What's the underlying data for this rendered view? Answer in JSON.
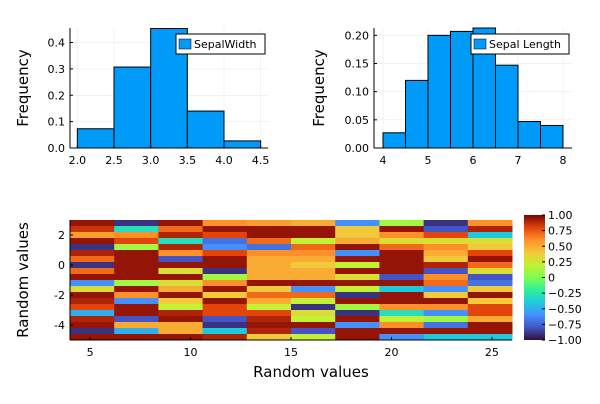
{
  "chart_data": [
    {
      "type": "bar",
      "subtype": "histogram",
      "bin_edges": [
        2.0,
        2.5,
        3.0,
        3.5,
        4.0,
        4.5
      ],
      "values": [
        0.073,
        0.307,
        0.453,
        0.14,
        0.027
      ],
      "series": [
        {
          "name": "SepalWidth",
          "values": [
            0.073,
            0.307,
            0.453,
            0.14,
            0.027
          ]
        }
      ],
      "title": "",
      "xlabel": "",
      "ylabel": "Frequency",
      "xlim": [
        1.9,
        4.6
      ],
      "ylim": [
        0,
        0.455
      ],
      "xticks": [
        2.0,
        2.5,
        3.0,
        3.5,
        4.0,
        4.5
      ],
      "xtick_labels": [
        "2.0",
        "2.5",
        "3.0",
        "3.5",
        "4.0",
        "4.5"
      ],
      "yticks": [
        0,
        0.1,
        0.2,
        0.3,
        0.4
      ],
      "ytick_labels": [
        "0.0",
        "0.1",
        "0.2",
        "0.3",
        "0.4"
      ],
      "legend": "top-right",
      "grid": true,
      "bar_color": "#009af9"
    },
    {
      "type": "bar",
      "subtype": "histogram",
      "bin_edges": [
        4.0,
        4.5,
        5.0,
        5.5,
        6.0,
        6.5,
        7.0,
        7.5,
        8.0
      ],
      "values": [
        0.027,
        0.12,
        0.2,
        0.207,
        0.213,
        0.147,
        0.047,
        0.04
      ],
      "series": [
        {
          "name": "Sepal Length",
          "values": [
            0.027,
            0.12,
            0.2,
            0.207,
            0.213,
            0.147,
            0.047,
            0.04
          ]
        }
      ],
      "title": "",
      "xlabel": "",
      "ylabel": "Frequency",
      "xlim": [
        3.8,
        8.2
      ],
      "ylim": [
        0,
        0.213
      ],
      "xticks": [
        4,
        5,
        6,
        7,
        8
      ],
      "xtick_labels": [
        "4",
        "5",
        "6",
        "7",
        "8"
      ],
      "yticks": [
        0,
        0.05,
        0.1,
        0.15,
        0.2
      ],
      "ytick_labels": [
        "0.00",
        "0.05",
        "0.10",
        "0.15",
        "0.20"
      ],
      "legend": "top-right",
      "grid": true,
      "bar_color": "#009af9"
    },
    {
      "type": "heatmap",
      "title": "",
      "xlabel": "Random values",
      "ylabel": "Random values",
      "colormap": "turbo",
      "x_range": [
        4,
        26
      ],
      "y_range": [
        -5,
        3
      ],
      "xticks": [
        5,
        10,
        15,
        20,
        25
      ],
      "xtick_labels": [
        "5",
        "10",
        "15",
        "20",
        "25"
      ],
      "yticks": [
        2,
        0,
        -2,
        -4
      ],
      "ytick_labels": [
        "2",
        "0",
        "-2",
        "-4"
      ],
      "colorbar": {
        "clim": [
          -1,
          1
        ],
        "ticks": [
          1,
          0.75,
          0.5,
          0.25,
          0,
          -0.25,
          -0.5,
          -0.75,
          -1
        ],
        "tick_labels": [
          "1.00",
          "0.75",
          "0.50",
          "0.25",
          "0",
          "−0.25",
          "−0.50",
          "−0.75",
          "−1.00"
        ]
      },
      "values": [
        [
          0.95,
          -0.9,
          0.95,
          0.6,
          0.55,
          0.5,
          -0.6,
          0.1,
          -0.9,
          0.6
        ],
        [
          0.85,
          -0.3,
          0.7,
          0.95,
          0.95,
          0.95,
          0.4,
          0.95,
          -0.8,
          0.9
        ],
        [
          0.55,
          0.6,
          0.9,
          0.8,
          0.95,
          0.95,
          0.4,
          0.6,
          0.8,
          -0.4
        ],
        [
          0.95,
          0.8,
          -0.3,
          -0.7,
          0.7,
          0.2,
          0.5,
          0.3,
          0.3,
          0.3
        ],
        [
          -0.9,
          0.1,
          0.9,
          -0.6,
          -0.7,
          0.7,
          0.95,
          0.7,
          0.6,
          0.4
        ],
        [
          0.9,
          0.95,
          0.6,
          0.8,
          0.6,
          0.6,
          -0.6,
          0.95,
          0.5,
          0.8
        ],
        [
          0.7,
          0.95,
          -0.8,
          0.95,
          0.5,
          0.5,
          0.95,
          0.95,
          0.4,
          0.95
        ],
        [
          -0.9,
          0.95,
          0.95,
          0.95,
          0.5,
          0.4,
          0.2,
          0.95,
          0.9,
          0.7
        ],
        [
          0.7,
          0.95,
          0.3,
          -0.9,
          0.5,
          0.5,
          0.95,
          0.95,
          -0.8,
          0.3
        ],
        [
          0.95,
          0.95,
          0.95,
          0.1,
          0.5,
          0.5,
          0.3,
          -0.8,
          0.6,
          -0.8
        ],
        [
          -0.6,
          0.1,
          0.3,
          0.6,
          0.95,
          0.95,
          0.95,
          0.95,
          0.7,
          -0.7
        ],
        [
          0.3,
          0.95,
          0.5,
          0.95,
          0.4,
          -0.6,
          0.2,
          -0.4,
          -0.6,
          0.4
        ],
        [
          0.95,
          0.6,
          0.95,
          0.4,
          0.7,
          0.7,
          -0.9,
          0.95,
          0.4,
          0.95
        ],
        [
          0.9,
          -0.6,
          0.4,
          0.95,
          0.5,
          0.2,
          0.95,
          0.95,
          0.95,
          0.4
        ],
        [
          0.8,
          0.95,
          0.2,
          0.8,
          0.2,
          -0.9,
          0.1,
          0.6,
          0.6,
          0.8
        ],
        [
          -0.5,
          0.95,
          0.9,
          0.8,
          0.8,
          0.3,
          -0.9,
          -0.3,
          -0.6,
          0.8
        ],
        [
          0.9,
          -0.8,
          0.95,
          -0.8,
          0.9,
          0.2,
          0.95,
          0.2,
          0.1,
          0.5
        ],
        [
          0.95,
          0.5,
          0.5,
          -0.9,
          0.95,
          0.95,
          -0.6,
          0.6,
          -0.7,
          0.95
        ],
        [
          -0.9,
          -0.5,
          0.5,
          -0.4,
          0.9,
          -0.8,
          0.95,
          0.95,
          0.95,
          0.95
        ],
        [
          0.95,
          0.95,
          0.95,
          0.9,
          0.4,
          0.2,
          0.95,
          -0.6,
          -0.4,
          -0.4
        ]
      ]
    }
  ]
}
